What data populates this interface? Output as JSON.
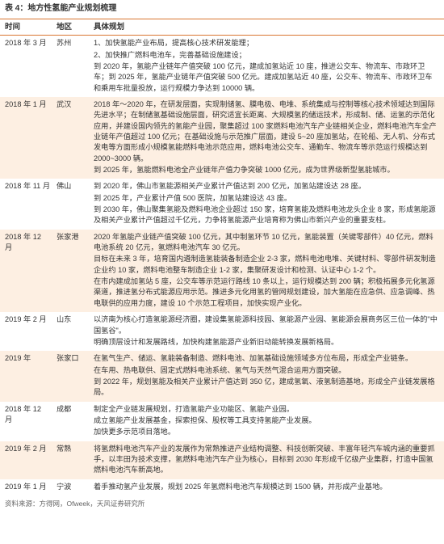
{
  "title": "表 4：地方性氢能产业规划梳理",
  "headers": {
    "time": "时间",
    "region": "地区",
    "content": "具体规划"
  },
  "rows": [
    {
      "time": "2018 年 3 月",
      "region": "苏州",
      "lines": [
        "1、加快氢能产业布局，提高核心技术研发能理；",
        "2、加快推广燃料电池车，完善基础设施建设；",
        "到 2020 年，氢能产业链年产值突破 100 亿元，建成加氢站近 10 座，推进公交车、物流车、市政环卫车；到 2025 年，氢能产业链年产值突破 500 亿元。建成加氢站近 40 座，公交车、物流车、市政环卫车和乘用车批量投放，运行规模力争达到 10000 辆。"
      ]
    },
    {
      "time": "2018 年 1 月",
      "region": "武汉",
      "lines": [
        "2018 年～2020 年，在研发层面，实现制储氢、膜电极、电堆、系统集成与控制等核心技术领域达到国际先进水平；在制储氢基础设施层面，研究适宜长距离、大规模氢的储运技术，形成制、储、运氢的示范化应用，并建设国内领先的氢能产业园，聚集超过 100 家燃料电池汽车产业链相关企业，燃料电池汽车全产业链年产值超过 100 亿元；在基础设施与示范推广层面，建设 5~20 座加氢站，在轮船、无人机、分布式发电等方面形成小规模氢能燃料电池示范应用，燃料电池公交车、通勤车、物流车等示范运行规模达到 2000~3000 辆。",
        "到 2025 年，氢能燃料电池全产业链年产值力争突破 1000 亿元，成为世界级新型氢能城市。"
      ]
    },
    {
      "time": "2018 年 11 月",
      "region": "佛山",
      "lines": [
        "到 2020 年，佛山市氢能源相关产业累计产值达到 200 亿元，加氢站建设达 28 座。",
        "到 2025 年，产业累计产值 500 医院，加氢站建设达 43 座。",
        "到 2030 年，佛山聚集氢能及燃料电池企业超过 150 家，培育氢能及燃料电池龙头企业 8 家，形成氢能源及相关产业累计产值超过千亿元，力争将氢能源产业培育称为佛山市新兴产业的重要支柱。"
      ]
    },
    {
      "time": "2018 年 12 月",
      "region": "张家港",
      "lines": [
        "2020 年氢能产业链产值突破 100 亿元，其中制氢环节 10 亿元，氢能装置（关键零部件）40 亿元，燃料电池系统 20 亿元，氢燃料电池汽车 30 亿元。",
        "目标在未来 3 年，培育国内遴制造氢能装备制造企业 2-3 家，燃料电池电堆、关键材料、零部件研发制造企业约 10 家，燃料电池整车制造企业 1-2 家，集聚研发设计和检测、认证中心 1-2 个。",
        "在市内建成加氢站 5 座，公交车等示范运行路线 10 条以上，运行规模达到 200 辆；积极拓展多元化氢源渠道，推进氢分布式能源应用示范。推进多元化用氢的管网规划建设，加大氢能在应急供、应急调峰、热电联供的应用力度，建设 10 个示范工程项目，加快实现产业化。"
      ]
    },
    {
      "time": "2019 年 2 月",
      "region": "山东",
      "lines": [
        "以济南为核心打造氢能源经济圈，建设集氢能源科技园、氢能源产业园、氢能源会展商务区三位一体的\"中国氢谷\"。",
        "明确顶层设计和发展路线，加快构建氢能源产业新旧动能转换发展新格局。"
      ]
    },
    {
      "time": "2019 年",
      "region": "张家口",
      "lines": [
        "在氢气生产、储运、氢能装备制造、燃料电池、加氢基础设施领域多方位布局，形成全产业链条。",
        "在车用、热电联供、固定式燃料电池系统、氢气与天然气混合运用方面突破。",
        "到 2022 年，规划氢能及相关产业累计产值达到 350 亿，建成氢氧、液氢制造基地，形成全产业链发展格局。"
      ]
    },
    {
      "time": "2018 年 12 月",
      "region": "成都",
      "lines": [
        "制定全产业链发展规划，打造氢能产业功能区、氢能产业园。",
        "成立氢能产业发展基金，探索担保、股权等工具支持氢能产业发展。",
        "加快更多示范项目落地。"
      ]
    },
    {
      "time": "2019 年 2 月",
      "region": "常熟",
      "lines": [
        "将氢燃料电池汽车产业的发展作为常熟推进产业结构调整、科技创新突破、丰富年轻汽车城内涵的重要抓手，以丰田为技术支撑，氢燃料电池汽车产业为核心，目标到 2030 年形成千亿级产业集群，打造中国氢燃料电池汽车新高地。"
      ]
    },
    {
      "time": "2019 年 1 月",
      "region": "宁波",
      "lines": [
        "着手推动氢产业发展，规划 2025 年氢燃料电池汽车规模达到 1500 辆，并形成产业基地。"
      ]
    }
  ],
  "source": "资料来源：方得网，Ofweek，天风证券研究所"
}
